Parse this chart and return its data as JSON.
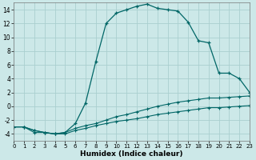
{
  "xlabel": "Humidex (Indice chaleur)",
  "background_color": "#cce8e8",
  "grid_color": "#aacfcf",
  "line_color": "#006666",
  "xlim": [
    0,
    23
  ],
  "ylim": [
    -5,
    15
  ],
  "yticks": [
    -4,
    -2,
    0,
    2,
    4,
    6,
    8,
    10,
    12,
    14
  ],
  "xticks": [
    0,
    1,
    2,
    3,
    4,
    5,
    6,
    7,
    8,
    9,
    10,
    11,
    12,
    13,
    14,
    15,
    16,
    17,
    18,
    19,
    20,
    21,
    22,
    23
  ],
  "curve_main_x": [
    1,
    2,
    3,
    4,
    5,
    6,
    7,
    8,
    9,
    10,
    11,
    12,
    13,
    14,
    15,
    16,
    17,
    18,
    19,
    20,
    21,
    22,
    23
  ],
  "curve_main_y": [
    -3.0,
    -3.5,
    -3.8,
    -4.0,
    -3.8,
    -2.5,
    0.5,
    6.5,
    12.0,
    13.5,
    14.0,
    14.5,
    14.8,
    14.2,
    14.0,
    13.8,
    12.2,
    9.5,
    9.2,
    4.8,
    4.8,
    4.0,
    2.0
  ],
  "curve_mid_x": [
    0,
    1,
    2,
    3,
    4,
    5,
    6,
    7,
    8,
    9,
    10,
    11,
    12,
    13,
    14,
    15,
    16,
    17,
    18,
    19,
    20,
    21,
    22,
    23
  ],
  "curve_mid_y": [
    -3.0,
    -3.0,
    -3.8,
    -3.8,
    -4.0,
    -3.8,
    -3.2,
    -2.8,
    -2.5,
    -2.0,
    -1.5,
    -1.2,
    -0.8,
    -0.4,
    0.0,
    0.3,
    0.6,
    0.8,
    1.0,
    1.2,
    1.2,
    1.3,
    1.4,
    1.5
  ],
  "curve_low_x": [
    0,
    1,
    2,
    3,
    4,
    5,
    6,
    7,
    8,
    9,
    10,
    11,
    12,
    13,
    14,
    15,
    16,
    17,
    18,
    19,
    20,
    21,
    22,
    23
  ],
  "curve_low_y": [
    -3.0,
    -3.0,
    -3.5,
    -3.8,
    -4.0,
    -4.0,
    -3.5,
    -3.2,
    -2.8,
    -2.5,
    -2.2,
    -2.0,
    -1.8,
    -1.5,
    -1.2,
    -1.0,
    -0.8,
    -0.6,
    -0.4,
    -0.2,
    -0.2,
    -0.1,
    0.0,
    0.1
  ]
}
